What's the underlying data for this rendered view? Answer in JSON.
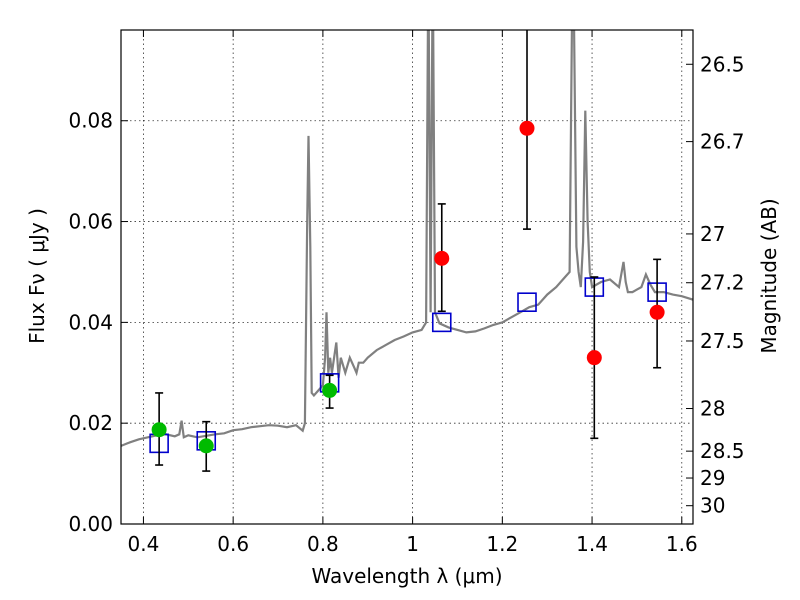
{
  "chart_data": {
    "type": "scatter",
    "title": "",
    "xlabel": "Wavelength  λ (μm)",
    "ylabel": "Flux  Fν  ( μJy )",
    "ylabel_right": "Magnitude (AB)",
    "xlim": [
      0.35,
      1.625
    ],
    "ylim": [
      0.0,
      0.098
    ],
    "grid": true,
    "x_ticks": [
      {
        "value": 0.4,
        "label": "0.4"
      },
      {
        "value": 0.6,
        "label": "0.6"
      },
      {
        "value": 0.8,
        "label": "0.8"
      },
      {
        "value": 1.0,
        "label": "1"
      },
      {
        "value": 1.2,
        "label": "1.2"
      },
      {
        "value": 1.4,
        "label": "1.4"
      },
      {
        "value": 1.6,
        "label": "1.6"
      }
    ],
    "y_ticks": [
      {
        "value": 0.0,
        "label": "0.00"
      },
      {
        "value": 0.02,
        "label": "0.02"
      },
      {
        "value": 0.04,
        "label": "0.04"
      },
      {
        "value": 0.06,
        "label": "0.06"
      },
      {
        "value": 0.08,
        "label": "0.08"
      }
    ],
    "right_ticks": [
      {
        "value": 26.5,
        "label": "26.5"
      },
      {
        "value": 26.7,
        "label": "26.7"
      },
      {
        "value": 27.0,
        "label": "27"
      },
      {
        "value": 27.2,
        "label": "27.2"
      },
      {
        "value": 27.5,
        "label": "27.5"
      },
      {
        "value": 28.0,
        "label": "28"
      },
      {
        "value": 28.5,
        "label": "28.5"
      },
      {
        "value": 29.0,
        "label": "29"
      },
      {
        "value": 30.0,
        "label": "30"
      }
    ],
    "spectrum": {
      "color": "#808080",
      "x": [
        0.35,
        0.37,
        0.39,
        0.41,
        0.43,
        0.45,
        0.47,
        0.48,
        0.485,
        0.49,
        0.5,
        0.52,
        0.54,
        0.56,
        0.58,
        0.6,
        0.62,
        0.64,
        0.66,
        0.68,
        0.7,
        0.72,
        0.74,
        0.755,
        0.76,
        0.765,
        0.768,
        0.772,
        0.775,
        0.78,
        0.79,
        0.8,
        0.805,
        0.808,
        0.812,
        0.816,
        0.82,
        0.83,
        0.835,
        0.84,
        0.85,
        0.86,
        0.87,
        0.875,
        0.88,
        0.89,
        0.9,
        0.92,
        0.94,
        0.96,
        0.98,
        1.0,
        1.02,
        1.03,
        1.034,
        1.036,
        1.04,
        1.044,
        1.046,
        1.05,
        1.06,
        1.08,
        1.1,
        1.12,
        1.14,
        1.16,
        1.18,
        1.2,
        1.22,
        1.24,
        1.26,
        1.28,
        1.3,
        1.32,
        1.34,
        1.35,
        1.355,
        1.36,
        1.365,
        1.37,
        1.375,
        1.38,
        1.385,
        1.39,
        1.395,
        1.4,
        1.42,
        1.44,
        1.46,
        1.47,
        1.475,
        1.48,
        1.49,
        1.5,
        1.51,
        1.52,
        1.53,
        1.54,
        1.56,
        1.58,
        1.6,
        1.625
      ],
      "y": [
        0.0155,
        0.0162,
        0.0168,
        0.0172,
        0.0176,
        0.0178,
        0.0174,
        0.0178,
        0.0205,
        0.0172,
        0.0176,
        0.0172,
        0.0175,
        0.0178,
        0.018,
        0.0186,
        0.0188,
        0.0192,
        0.0194,
        0.0196,
        0.0195,
        0.0192,
        0.0196,
        0.0185,
        0.02,
        0.06,
        0.077,
        0.055,
        0.026,
        0.0255,
        0.0265,
        0.0275,
        0.033,
        0.042,
        0.03,
        0.033,
        0.03,
        0.036,
        0.029,
        0.033,
        0.03,
        0.033,
        0.031,
        0.03,
        0.032,
        0.032,
        0.033,
        0.0345,
        0.0355,
        0.0365,
        0.0372,
        0.038,
        0.0385,
        0.04,
        0.098,
        0.098,
        0.042,
        0.098,
        0.098,
        0.042,
        0.0398,
        0.039,
        0.0385,
        0.038,
        0.0382,
        0.0388,
        0.0395,
        0.04,
        0.041,
        0.042,
        0.043,
        0.0435,
        0.0455,
        0.047,
        0.049,
        0.05,
        0.098,
        0.098,
        0.055,
        0.05,
        0.047,
        0.056,
        0.082,
        0.06,
        0.05,
        0.047,
        0.048,
        0.0485,
        0.047,
        0.052,
        0.048,
        0.046,
        0.046,
        0.0465,
        0.047,
        0.0495,
        0.0475,
        0.046,
        0.046,
        0.0455,
        0.0452,
        0.0445
      ]
    },
    "series": [
      {
        "marker": "green-circle",
        "color": "#00bb00",
        "points": [
          {
            "x": 0.435,
            "y": 0.0187,
            "err_low": 0.007,
            "err_high": 0.0073
          },
          {
            "x": 0.54,
            "y": 0.0155,
            "err_low": 0.005,
            "err_high": 0.0048
          },
          {
            "x": 0.815,
            "y": 0.0265,
            "err_low": 0.0035,
            "err_high": 0.003
          }
        ]
      },
      {
        "marker": "red-circle",
        "color": "#ff0000",
        "points": [
          {
            "x": 1.065,
            "y": 0.0527,
            "err_low": 0.0105,
            "err_high": 0.0108
          },
          {
            "x": 1.255,
            "y": 0.0785,
            "err_low": 0.02,
            "err_high": 0.02
          },
          {
            "x": 1.405,
            "y": 0.033,
            "err_low": 0.016,
            "err_high": 0.016
          },
          {
            "x": 1.545,
            "y": 0.042,
            "err_low": 0.011,
            "err_high": 0.0105
          }
        ]
      },
      {
        "marker": "blue-square",
        "color": "#0000cc",
        "points": [
          {
            "x": 0.435,
            "y": 0.016
          },
          {
            "x": 0.54,
            "y": 0.0165
          },
          {
            "x": 0.815,
            "y": 0.028
          },
          {
            "x": 1.065,
            "y": 0.04
          },
          {
            "x": 1.255,
            "y": 0.044
          },
          {
            "x": 1.405,
            "y": 0.047
          },
          {
            "x": 1.545,
            "y": 0.046
          }
        ]
      }
    ]
  }
}
